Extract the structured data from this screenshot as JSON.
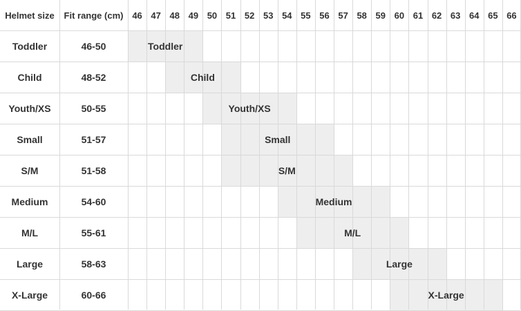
{
  "columns": {
    "size_header": "Helmet size",
    "range_header": "Fit range (cm)"
  },
  "chart_data": {
    "type": "table",
    "x_ticks": [
      46,
      47,
      48,
      49,
      50,
      51,
      52,
      53,
      54,
      55,
      56,
      57,
      58,
      59,
      60,
      61,
      62,
      63,
      64,
      65,
      66
    ],
    "rows": [
      {
        "size": "Toddler",
        "range": "46-50",
        "min": 46,
        "max": 50
      },
      {
        "size": "Child",
        "range": "48-52",
        "min": 48,
        "max": 52
      },
      {
        "size": "Youth/XS",
        "range": "50-55",
        "min": 50,
        "max": 55
      },
      {
        "size": "Small",
        "range": "51-57",
        "min": 51,
        "max": 57
      },
      {
        "size": "S/M",
        "range": "51-58",
        "min": 51,
        "max": 58
      },
      {
        "size": "Medium",
        "range": "54-60",
        "min": 54,
        "max": 60
      },
      {
        "size": "M/L",
        "range": "55-61",
        "min": 55,
        "max": 61
      },
      {
        "size": "Large",
        "range": "58-63",
        "min": 58,
        "max": 63
      },
      {
        "size": "X-Large",
        "range": "60-66",
        "min": 60,
        "max": 66
      }
    ],
    "band_color": "#eeeeee",
    "grid_color": "#d9d9d9",
    "text_color": "#333333"
  }
}
